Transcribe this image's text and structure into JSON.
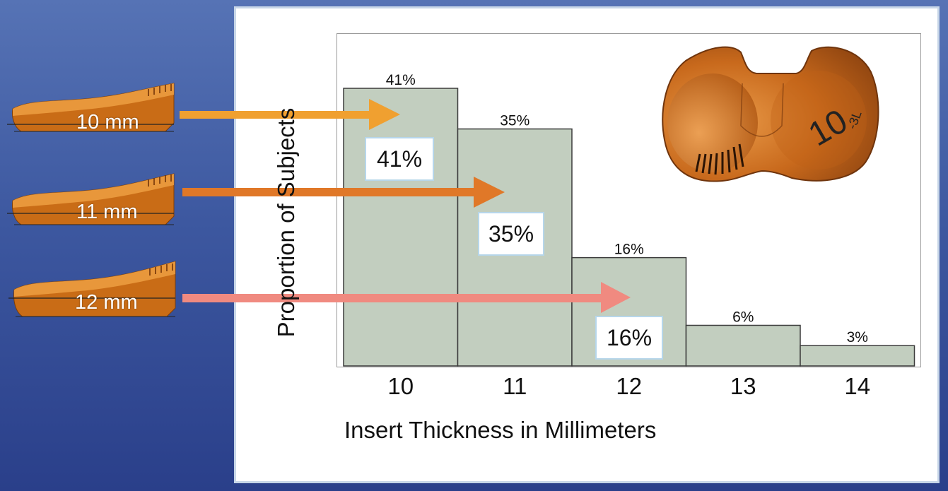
{
  "chart_data": {
    "type": "bar",
    "categories": [
      "10",
      "11",
      "12",
      "13",
      "14"
    ],
    "values": [
      41,
      35,
      16,
      6,
      3
    ],
    "value_labels": [
      "41%",
      "35%",
      "16%",
      "6%",
      "3%"
    ],
    "ylim": [
      0,
      45
    ],
    "xlabel": "Insert Thickness in Millimeters",
    "ylabel": "Proportion of Subjects",
    "bar_color": "#c2cebf",
    "bar_edge": "#3c3c3c",
    "grid": false
  },
  "implants": [
    {
      "label": "10 mm",
      "arrow_color": "#f0a030",
      "callout": "41%"
    },
    {
      "label": "11 mm",
      "arrow_color": "#e07828",
      "callout": "35%"
    },
    {
      "label": "12 mm",
      "arrow_color": "#f08a80",
      "callout": "16%"
    }
  ],
  "insert_marking": {
    "number": "10",
    "suffix": "-3L"
  },
  "colors": {
    "implant_orange": "#d07818",
    "panel_border": "#c7d6e8"
  }
}
